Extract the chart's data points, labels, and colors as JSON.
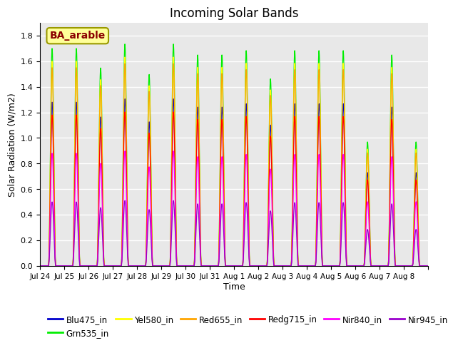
{
  "title": "Incoming Solar Bands",
  "xlabel": "Time",
  "ylabel": "Solar Radiation (W/m2)",
  "annotation_text": "BA_arable",
  "annotation_color": "#8B0000",
  "annotation_bg": "#FFFF99",
  "annotation_border": "#999900",
  "ylim": [
    0,
    1.9
  ],
  "yticks": [
    0.0,
    0.2,
    0.4,
    0.6,
    0.8,
    1.0,
    1.2,
    1.4,
    1.6,
    1.8
  ],
  "background_color": "#e8e8e8",
  "bands_order": [
    "Blu475_in",
    "Grn535_in",
    "Yel580_in",
    "Red655_in",
    "Redg715_in",
    "Nir840_in",
    "Nir945_in"
  ],
  "bands": {
    "Blu475_in": {
      "color": "#0000CC",
      "scale": 1.28
    },
    "Grn535_in": {
      "color": "#00EE00",
      "scale": 1.7
    },
    "Yel580_in": {
      "color": "#FFFF00",
      "scale": 1.6
    },
    "Red655_in": {
      "color": "#FFA500",
      "scale": 1.55
    },
    "Redg715_in": {
      "color": "#FF0000",
      "scale": 1.18
    },
    "Nir840_in": {
      "color": "#FF00FF",
      "scale": 0.88
    },
    "Nir945_in": {
      "color": "#9900CC",
      "scale": 0.5
    }
  },
  "date_labels": [
    "Jul 24",
    "Jul 25",
    "Jul 26",
    "Jul 27",
    "Jul 28",
    "Jul 29",
    "Jul 30",
    "Jul 31",
    "Aug 1",
    "Aug 2",
    "Aug 3",
    "Aug 4",
    "Aug 5",
    "Aug 6",
    "Aug 7",
    "Aug 8"
  ],
  "n_days": 16,
  "peak_factors": [
    1.0,
    1.0,
    0.91,
    1.02,
    0.88,
    1.02,
    0.97,
    0.97,
    0.99,
    0.86,
    0.99,
    0.99,
    0.99,
    0.57,
    0.97,
    0.57
  ]
}
